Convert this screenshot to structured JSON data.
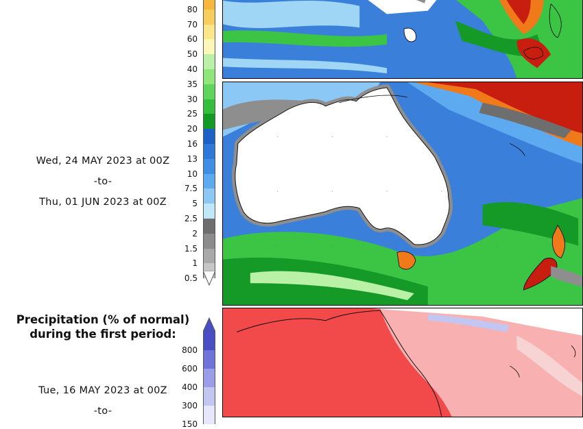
{
  "map": {
    "legend_values_top": [
      "80",
      "70",
      "60",
      "50",
      "40",
      "35",
      "30",
      "25",
      "20",
      "16",
      "13",
      "10",
      "7.5",
      "5",
      "2.5",
      "2",
      "1.5",
      "1",
      "0.5"
    ],
    "legend_colors_top": [
      "#f6b73c",
      "#f7cd5c",
      "#fbe68a",
      "#fdf7b9",
      "#b9f1a6",
      "#8fe77a",
      "#5fd559",
      "#35bd3c",
      "#129a25",
      "#1c62c6",
      "#2e78da",
      "#3f8fe7",
      "#5eaaf1",
      "#8cc8f6",
      "#bfe6f9",
      "#6e6e6e",
      "#8c8c8c",
      "#a9a9a9",
      "#c6c6c6"
    ],
    "period_dates": {
      "start": "Wed, 24 MAY 2023 at 00Z",
      "to": "-to-",
      "end": "Thu, 01 JUN 2023 at 00Z"
    },
    "section_title": "Precipitation (% of normal)\nduring the first period:",
    "legend_values_bottom": [
      "800",
      "600",
      "400",
      "300",
      "150"
    ],
    "legend_colors_bottom": [
      "#4a4ec4",
      "#6f73da",
      "#9a9de8",
      "#c4c6f2",
      "#e6e7fa"
    ],
    "first_period": {
      "start": "Tue, 16 MAY 2023 at 00Z",
      "to": "-to-"
    },
    "map_colors": {
      "land_dry": "#ffffff",
      "ocean_blue": "#3a7fd9",
      "light_blue": "#9fd6f5",
      "green": "#3cc545",
      "dark_green": "#169a27",
      "red_heavy": "#c81e0f",
      "orange": "#f07a1a",
      "grey": "#8e8e8e",
      "pct_red": "#f24a4a",
      "pct_pink": "#f8b0b0"
    }
  }
}
